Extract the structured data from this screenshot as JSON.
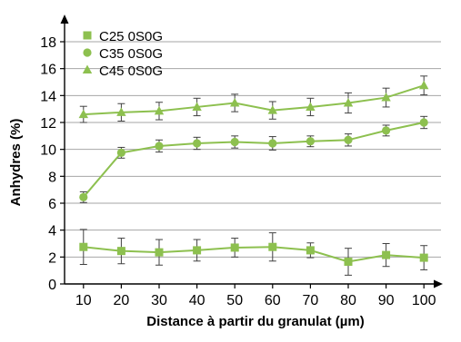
{
  "chart_data": {
    "type": "line",
    "xlabel": "Distance à partir du granulat (µm)",
    "ylabel": "Anhydres (%)",
    "x": [
      10,
      20,
      30,
      40,
      50,
      60,
      70,
      80,
      90,
      100
    ],
    "xlim": [
      5,
      105
    ],
    "ylim": [
      0,
      18
    ],
    "yticks": [
      0,
      2,
      4,
      6,
      8,
      10,
      12,
      14,
      16,
      18
    ],
    "grid": "horizontal",
    "legend_position": "top-left",
    "series_color": "#8dc04f",
    "series": [
      {
        "name": "C25 0S0G",
        "marker": "square",
        "values": [
          2.75,
          2.45,
          2.35,
          2.5,
          2.7,
          2.75,
          2.5,
          1.65,
          2.15,
          1.95
        ],
        "errors": [
          1.3,
          0.95,
          0.95,
          0.8,
          0.7,
          1.05,
          0.55,
          1.0,
          0.85,
          0.9
        ]
      },
      {
        "name": "C35 0S0G",
        "marker": "circle",
        "values": [
          6.45,
          9.75,
          10.25,
          10.45,
          10.55,
          10.45,
          10.6,
          10.7,
          11.4,
          12.0
        ],
        "errors": [
          0.4,
          0.4,
          0.45,
          0.45,
          0.45,
          0.5,
          0.4,
          0.45,
          0.4,
          0.45
        ]
      },
      {
        "name": "C45 0S0G",
        "marker": "triangle",
        "values": [
          12.6,
          12.75,
          12.85,
          13.15,
          13.45,
          12.9,
          13.15,
          13.45,
          13.85,
          14.75
        ],
        "errors": [
          0.6,
          0.65,
          0.65,
          0.65,
          0.65,
          0.65,
          0.65,
          0.75,
          0.7,
          0.7
        ]
      }
    ]
  }
}
